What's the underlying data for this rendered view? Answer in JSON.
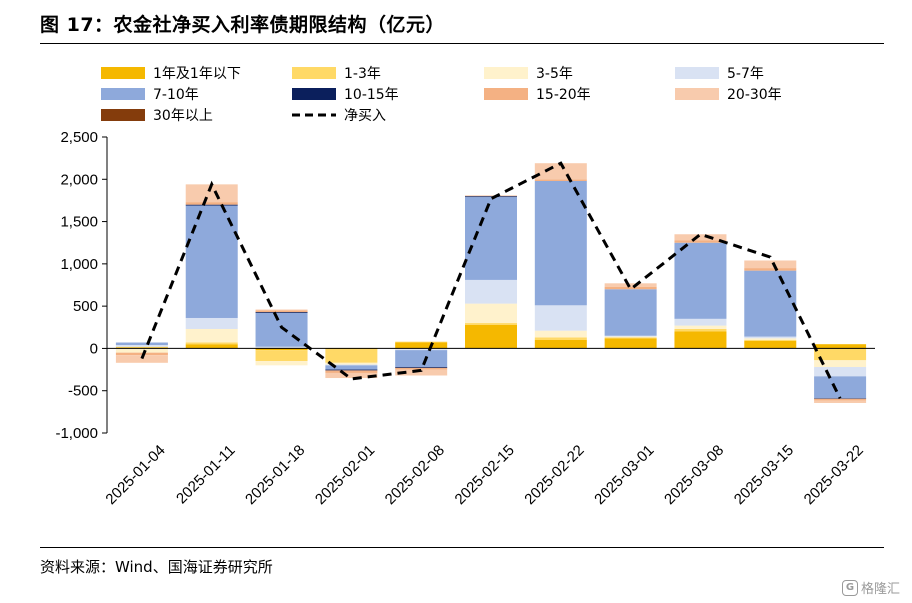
{
  "title": "图 17：农金社净买入利率债期限结构（亿元）",
  "source": "资料来源：Wind、国海证券研究所",
  "watermark": {
    "text": "格隆汇",
    "logo_icon": "gelonghui-logo-icon"
  },
  "chart_data": {
    "type": "bar",
    "stacked": true,
    "categories": [
      "2025-01-04",
      "2025-01-11",
      "2025-01-18",
      "2025-02-01",
      "2025-02-08",
      "2025-02-15",
      "2025-02-22",
      "2025-03-01",
      "2025-03-08",
      "2025-03-15",
      "2025-03-22"
    ],
    "ylim": [
      -1000,
      2500
    ],
    "yticks": [
      -1000,
      -500,
      0,
      500,
      1000,
      1500,
      2000,
      2500
    ],
    "ytick_labels": [
      "-1,000",
      "-500",
      "0",
      "500",
      "1,000",
      "1,500",
      "2,000",
      "2,500"
    ],
    "grid": false,
    "legend_position": "top",
    "series": [
      {
        "name": "1年及1年以下",
        "color": "#F5B800",
        "values": [
          10,
          50,
          -20,
          -10,
          70,
          280,
          100,
          120,
          200,
          90,
          50
        ]
      },
      {
        "name": "1-3年",
        "color": "#FFD966",
        "values": [
          10,
          20,
          -130,
          -160,
          10,
          20,
          30,
          10,
          30,
          10,
          -140
        ]
      },
      {
        "name": "3-5年",
        "color": "#FFF2CC",
        "values": [
          -50,
          160,
          -50,
          -20,
          -10,
          230,
          80,
          10,
          40,
          20,
          -80
        ]
      },
      {
        "name": "5-7年",
        "color": "#D9E2F3",
        "values": [
          20,
          130,
          20,
          -10,
          -10,
          280,
          300,
          10,
          80,
          20,
          -110
        ]
      },
      {
        "name": "7-10年",
        "color": "#8EA9DB",
        "values": [
          30,
          1330,
          400,
          -50,
          -200,
          980,
          1470,
          550,
          900,
          780,
          -260
        ]
      },
      {
        "name": "10-15年",
        "color": "#0B1F5C",
        "values": [
          0,
          10,
          10,
          -10,
          -10,
          10,
          0,
          0,
          0,
          0,
          -5
        ]
      },
      {
        "name": "15-20年",
        "color": "#F4B183",
        "values": [
          -30,
          30,
          20,
          -30,
          -20,
          0,
          20,
          30,
          30,
          30,
          -20
        ]
      },
      {
        "name": "20-30年",
        "color": "#F8CBAD",
        "values": [
          -90,
          210,
          10,
          -60,
          -70,
          10,
          190,
          40,
          70,
          90,
          -30
        ]
      },
      {
        "name": "30年以上",
        "color": "#843C0C",
        "values": [
          0,
          0,
          0,
          0,
          0,
          0,
          0,
          0,
          0,
          0,
          0
        ]
      }
    ],
    "line": {
      "name": "净买入",
      "color": "#000000",
      "style": "dashed",
      "values": [
        -120,
        1940,
        250,
        -360,
        -260,
        1770,
        2190,
        700,
        1350,
        1080,
        -590
      ]
    }
  }
}
